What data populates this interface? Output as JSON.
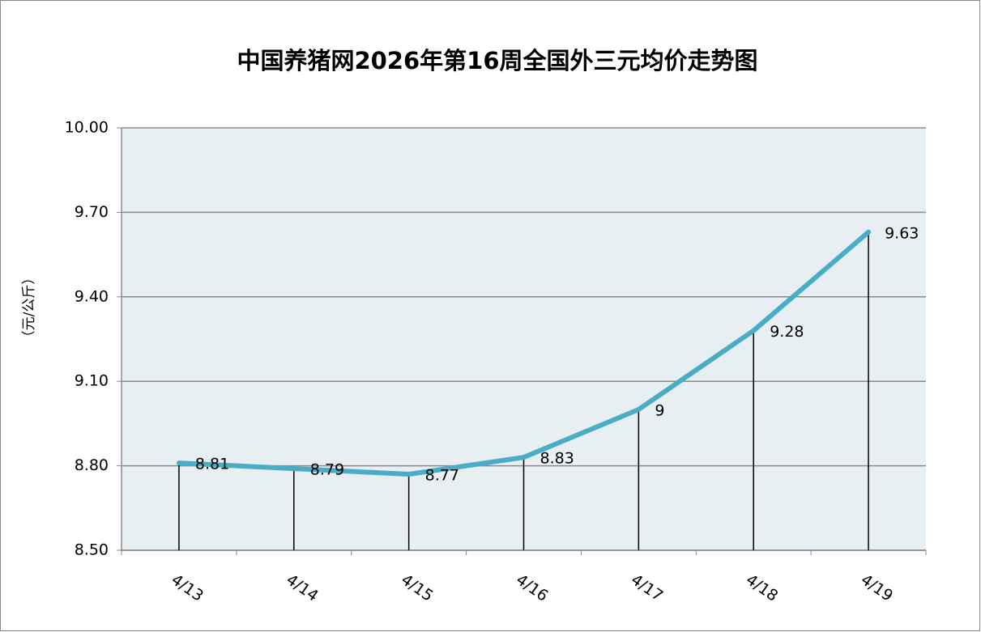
{
  "chart_data": {
    "type": "line",
    "title": "中国养猪网2026年第16周全国外三元均价走势图",
    "y_label": "（元/公斤）",
    "categories": [
      "4/13",
      "4/14",
      "4/15",
      "4/16",
      "4/17",
      "4/18",
      "4/19"
    ],
    "series": [
      {
        "name": "均价",
        "color": "#4bacc6",
        "values": [
          8.81,
          8.79,
          8.77,
          8.83,
          9,
          9.28,
          9.63
        ]
      }
    ],
    "ylim": [
      8.5,
      10
    ],
    "yticks": [
      {
        "value": 8.5,
        "label": "8.50"
      },
      {
        "value": 8.8,
        "label": "8.80"
      },
      {
        "value": 9.1,
        "label": "9.10"
      },
      {
        "value": 9.4,
        "label": "9.40"
      },
      {
        "value": 9.7,
        "label": "9.70"
      },
      {
        "value": 10,
        "label": "10.00"
      }
    ],
    "grid": true
  }
}
